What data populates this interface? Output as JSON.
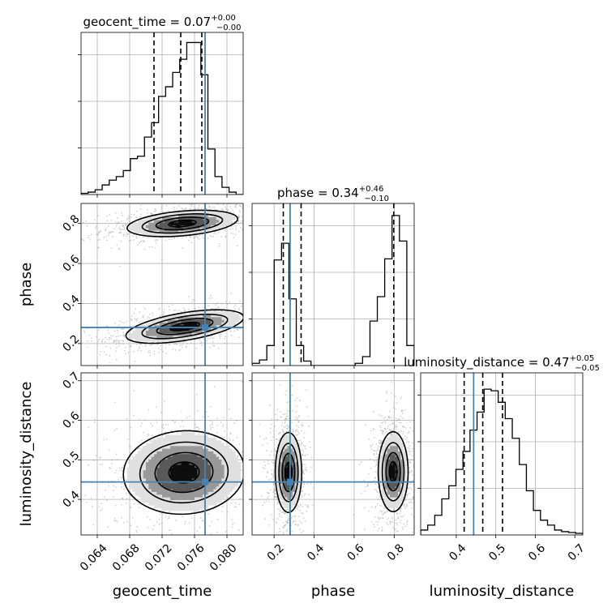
{
  "chart_data": {
    "type": "corner",
    "parameters": [
      "geocent_time",
      "phase",
      "luminosity_distance"
    ],
    "axis_labels": [
      "geocent_time",
      "phase",
      "luminosity_distance"
    ],
    "titles": [
      {
        "text": "geocent_time = 0.07",
        "sup": "+0.00",
        "sub": "−0.00"
      },
      {
        "text": "phase = 0.34",
        "sup": "+0.46",
        "sub": "−0.10"
      },
      {
        "text": "luminosity_distance = 0.47",
        "sup": "+0.05",
        "sub": "−0.05"
      }
    ],
    "ranges": [
      [
        0.062,
        0.082
      ],
      [
        0.09,
        0.9
      ],
      [
        0.31,
        0.72
      ]
    ],
    "ticks": [
      {
        "values": [
          0.064,
          0.068,
          0.072,
          0.076,
          0.08
        ],
        "labels": [
          "0.064",
          "0.068",
          "0.072",
          "0.076",
          "0.080"
        ]
      },
      {
        "values": [
          0.2,
          0.4,
          0.6,
          0.8
        ],
        "labels": [
          "0.2",
          "0.4",
          "0.6",
          "0.8"
        ]
      },
      {
        "values": [
          0.4,
          0.5,
          0.6,
          0.7
        ],
        "labels": [
          "0.4",
          "0.5",
          "0.6",
          "0.7"
        ]
      }
    ],
    "truth": {
      "color": "#4682b4",
      "values": [
        0.0773,
        0.28,
        0.444
      ]
    },
    "quantiles": [
      [
        0.071,
        0.0743,
        0.0769
      ],
      [
        0.246,
        0.335,
        0.798
      ],
      [
        0.42,
        0.467,
        0.517
      ]
    ],
    "histograms": [
      {
        "counts": [
          1,
          2,
          4,
          8,
          12,
          15,
          20,
          30,
          32,
          48,
          60,
          82,
          90,
          102,
          113,
          127,
          127,
          100,
          38,
          15,
          6,
          2,
          0
        ],
        "max": 130
      },
      {
        "counts": [
          2,
          5,
          18,
          95,
          110,
          60,
          18,
          4,
          0,
          0,
          0,
          0,
          0,
          0,
          2,
          8,
          40,
          62,
          96,
          135,
          112,
          18
        ],
        "max": 140
      },
      {
        "counts": [
          6,
          12,
          24,
          44,
          60,
          80,
          102,
          128,
          150,
          178,
          176,
          162,
          142,
          118,
          86,
          54,
          30,
          18,
          12,
          6,
          4,
          3,
          2
        ],
        "max": 190
      }
    ],
    "joint": [
      {
        "row": 1,
        "col": 0,
        "blobs": [
          {
            "mx": 0.0745,
            "my": 0.8,
            "sx": 0.0031,
            "sy": 0.03,
            "rho": 0.35,
            "w": 1.0
          },
          {
            "mx": 0.0748,
            "my": 0.285,
            "sx": 0.0033,
            "sy": 0.038,
            "rho": 0.55,
            "w": 1.0
          }
        ]
      },
      {
        "row": 2,
        "col": 0,
        "blobs": [
          {
            "mx": 0.0747,
            "my": 0.468,
            "sx": 0.0034,
            "sy": 0.048,
            "rho": 0.05,
            "w": 1.0
          }
        ]
      },
      {
        "row": 2,
        "col": 1,
        "blobs": [
          {
            "mx": 0.272,
            "my": 0.468,
            "sx": 0.03,
            "sy": 0.046,
            "rho": 0.0,
            "w": 1.0
          },
          {
            "mx": 0.795,
            "my": 0.47,
            "sx": 0.034,
            "sy": 0.046,
            "rho": 0.0,
            "w": 1.0
          }
        ]
      }
    ],
    "colors": {
      "line": "#000000",
      "grid": "#b0b0b0",
      "scatter": "#9a9a9a"
    }
  }
}
